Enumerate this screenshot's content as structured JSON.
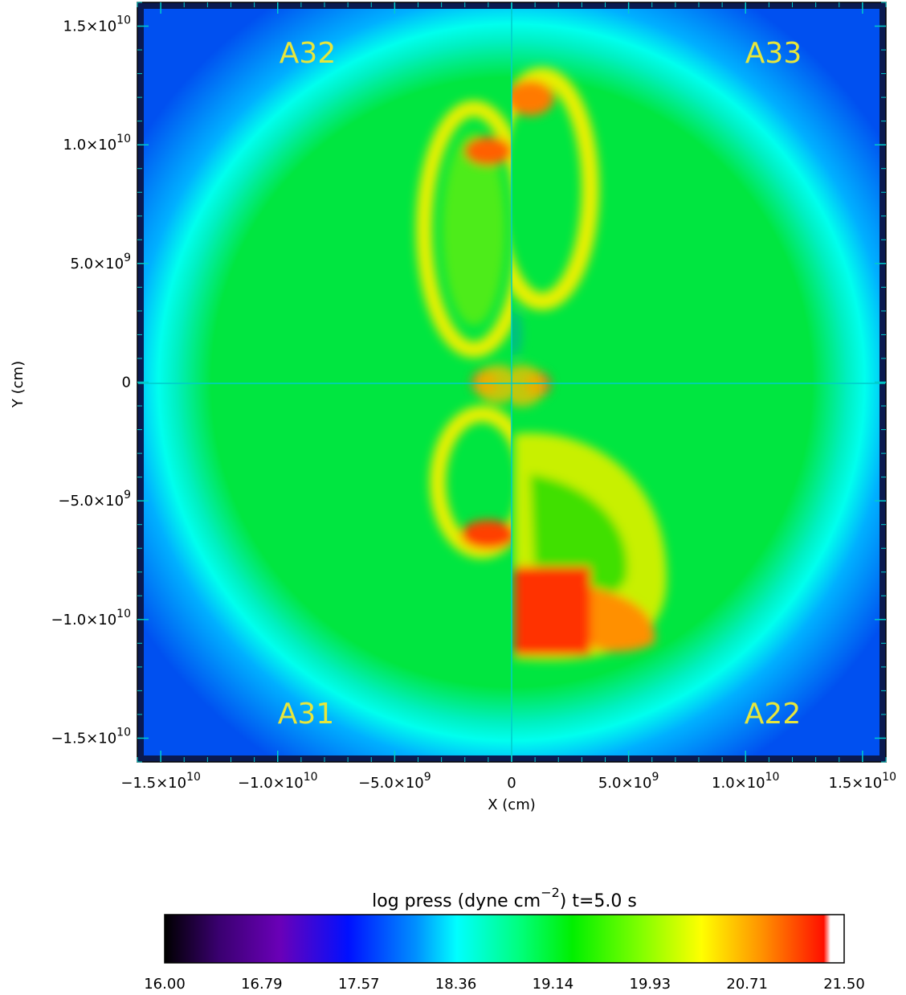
{
  "chart_data": {
    "type": "heatmap",
    "title": "",
    "xlabel": "X (cm)",
    "ylabel": "Y (cm)",
    "xlim": [
      -16000000000.0,
      16000000000.0
    ],
    "ylim": [
      -16000000000.0,
      16000000000.0
    ],
    "x_ticks": [
      {
        "value": -15000000000.0,
        "label": "−1.5×10",
        "exp": "10"
      },
      {
        "value": -10000000000.0,
        "label": "−1.0×10",
        "exp": "10"
      },
      {
        "value": -5000000000.0,
        "label": "−5.0×10",
        "exp": "9"
      },
      {
        "value": 0,
        "label": "0",
        "exp": ""
      },
      {
        "value": 5000000000.0,
        "label": "5.0×10",
        "exp": "9"
      },
      {
        "value": 10000000000.0,
        "label": "1.0×10",
        "exp": "10"
      },
      {
        "value": 15000000000.0,
        "label": "1.5×10",
        "exp": "10"
      }
    ],
    "y_ticks": [
      {
        "value": 15000000000.0,
        "label": "1.5×10",
        "exp": "10"
      },
      {
        "value": 10000000000.0,
        "label": "1.0×10",
        "exp": "10"
      },
      {
        "value": 5000000000.0,
        "label": "5.0×10",
        "exp": "9"
      },
      {
        "value": 0,
        "label": "0",
        "exp": ""
      },
      {
        "value": -5000000000.0,
        "label": "−5.0×10",
        "exp": "9"
      },
      {
        "value": -10000000000.0,
        "label": "−1.0×10",
        "exp": "10"
      },
      {
        "value": -15000000000.0,
        "label": "−1.5×10",
        "exp": "10"
      }
    ],
    "quadrant_labels": [
      {
        "text": "A32",
        "quadrant": "top-left"
      },
      {
        "text": "A33",
        "quadrant": "top-right"
      },
      {
        "text": "A31",
        "quadrant": "bottom-left"
      },
      {
        "text": "A22",
        "quadrant": "bottom-right"
      }
    ],
    "colorbar": {
      "title": "log press (dyne cm",
      "title_exp": "−2",
      "title_suffix": ") t=5.0 s",
      "min": 16.0,
      "max": 21.5,
      "ticks": [
        "16.00",
        "16.79",
        "17.57",
        "18.36",
        "19.14",
        "19.93",
        "20.71",
        "21.50"
      ],
      "colormap": "rainbow (black-purple-blue-cyan-green-yellow-red-white)"
    },
    "field_description_levels": {
      "background_corners": 17.6,
      "outer_ring": 18.4,
      "interior": 19.3,
      "lobe_edges": 20.2,
      "hot_spots": 21.0
    }
  },
  "colors": {
    "axis": "#00cccc",
    "label": "#e6e63c",
    "background": "#ffffff"
  }
}
